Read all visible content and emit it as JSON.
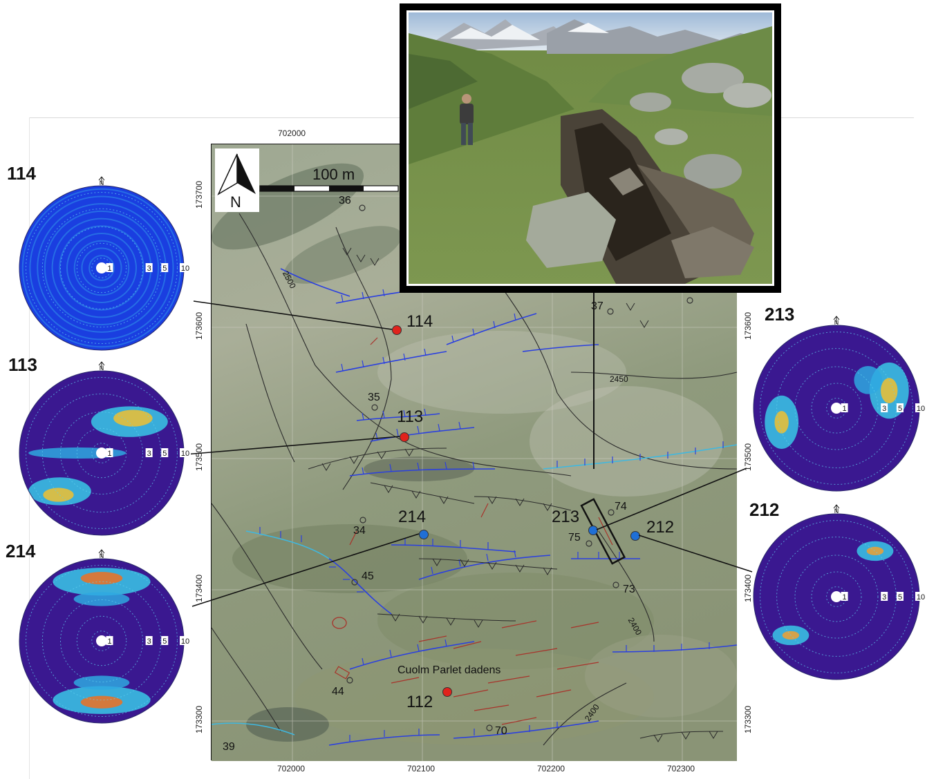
{
  "map": {
    "scale_bar_label": "100 m",
    "north_label": "N",
    "x_ticks": [
      "702000",
      "702100",
      "702200",
      "702300"
    ],
    "x_tick_top": "702000",
    "y_ticks_left": [
      "173700",
      "173600",
      "173500",
      "173400",
      "173300"
    ],
    "y_ticks_right": [
      "173600",
      "173500",
      "173400",
      "173300"
    ],
    "place_name": "Cuolm Parlet dadens",
    "contour_labels": [
      "2500",
      "2450",
      "2400",
      "2400"
    ],
    "sites": [
      {
        "id": "114",
        "color": "#e0231c"
      },
      {
        "id": "113",
        "color": "#e0231c"
      },
      {
        "id": "214",
        "color": "#1f6fd6"
      },
      {
        "id": "213",
        "color": "#1f6fd6"
      },
      {
        "id": "212",
        "color": "#1f6fd6"
      },
      {
        "id": "112",
        "color": "#e0231c"
      }
    ],
    "point_labels": [
      "36",
      "37",
      "35",
      "34",
      "45",
      "44",
      "39",
      "70",
      "73",
      "74",
      "75"
    ]
  },
  "stereonets": [
    {
      "label": "114",
      "north": "N",
      "rings": [
        "1",
        "3",
        "5",
        "10"
      ],
      "pattern": "scattered"
    },
    {
      "label": "113",
      "north": "N",
      "rings": [
        "1",
        "3",
        "5",
        "10"
      ],
      "pattern": "ne-sw"
    },
    {
      "label": "214",
      "north": "N",
      "rings": [
        "1",
        "3",
        "5",
        "10"
      ],
      "pattern": "n-s"
    },
    {
      "label": "213",
      "north": "N",
      "rings": [
        "1",
        "3",
        "5",
        "10"
      ],
      "pattern": "ene-wsw"
    },
    {
      "label": "212",
      "north": "N",
      "rings": [
        "1",
        "3",
        "5",
        "10"
      ],
      "pattern": "ne-sw-weak"
    }
  ],
  "colors": {
    "scarp_blue": "#2a3fe0",
    "scarp_cyan": "#3fb8e0",
    "fracture_red": "#a8322a",
    "site_red": "#e0231c",
    "site_blue": "#1f6fd6"
  }
}
